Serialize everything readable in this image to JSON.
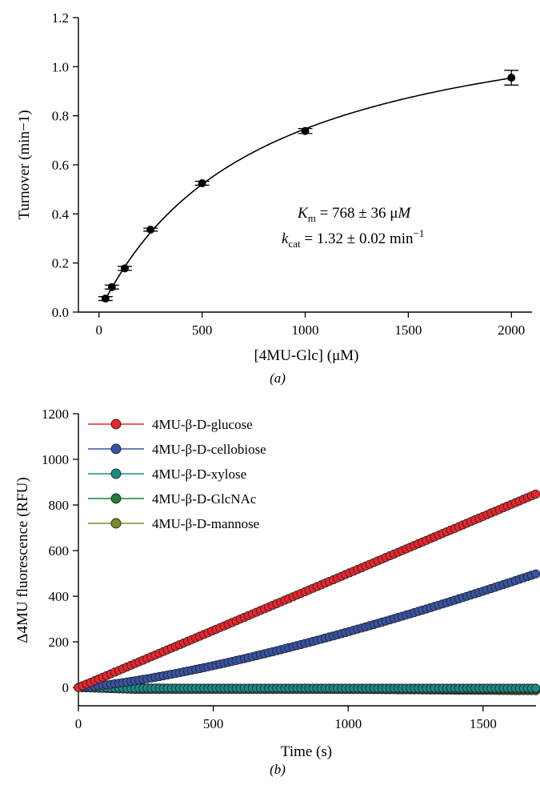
{
  "figure": {
    "panel_a_label": "(a)",
    "panel_b_label": "(b)"
  },
  "chart_data": [
    {
      "type": "scatter",
      "panel": "a",
      "xlabel": "[4MU-Glc] (μM)",
      "ylabel": "Turnover (min−1)",
      "xlim": [
        -100,
        2100
      ],
      "ylim": [
        0,
        1.2
      ],
      "xticks": [
        0,
        500,
        1000,
        1500,
        2000
      ],
      "yticks": [
        0.0,
        0.2,
        0.4,
        0.6,
        0.8,
        1.0,
        1.2
      ],
      "ytick_labels": [
        "0.0",
        "0.2",
        "0.4",
        "0.6",
        "0.8",
        "1.0",
        "1.2"
      ],
      "grid": false,
      "points": [
        {
          "x": 31.25,
          "y": 0.055,
          "err": 0.008
        },
        {
          "x": 62.5,
          "y": 0.102,
          "err": 0.008
        },
        {
          "x": 125,
          "y": 0.178,
          "err": 0.008
        },
        {
          "x": 250,
          "y": 0.336,
          "err": 0.006
        },
        {
          "x": 500,
          "y": 0.525,
          "err": 0.008
        },
        {
          "x": 1000,
          "y": 0.738,
          "err": 0.01
        },
        {
          "x": 2000,
          "y": 0.955,
          "err": 0.03
        }
      ],
      "fit": {
        "model": "Michaelis-Menten",
        "Vmax": 1.32,
        "Km": 768
      },
      "annotation": {
        "km_label": "K",
        "km_sub": "m",
        "km_value": " = 768 ± 36 μ",
        "km_unit": "M",
        "kcat_label": "k",
        "kcat_sub": "cat",
        "kcat_value": " = 1.32 ± 0.02 min",
        "kcat_sup": "−1"
      }
    },
    {
      "type": "scatter",
      "panel": "b",
      "xlabel": "Time (s)",
      "ylabel": "Δ4MU fluorescence (RFU)",
      "xlim": [
        0,
        1720
      ],
      "ylim": [
        -80,
        1200
      ],
      "xticks": [
        0,
        500,
        1000,
        1500
      ],
      "yticks": [
        0,
        200,
        400,
        600,
        800,
        1000,
        1200
      ],
      "grid": false,
      "legend_position": "top-left",
      "x_step": 15,
      "x_max": 1700,
      "series": [
        {
          "name": "4MU-β-D-glucose",
          "color": "#e8262b",
          "model": "linear",
          "end_value": 850
        },
        {
          "name": "4MU-β-D-cellobiose",
          "color": "#3753a4",
          "model": "lag",
          "end_value": 500
        },
        {
          "name": "4MU-β-D-xylose",
          "color": "#1a8a85",
          "model": "flat",
          "end_value": -3
        },
        {
          "name": "4MU-β-D-GlcNAc",
          "color": "#1e7f3c",
          "model": "flat",
          "end_value": -8
        },
        {
          "name": "4MU-β-D-mannose",
          "color": "#7d8a2c",
          "model": "decline",
          "end_value": -14
        }
      ]
    }
  ]
}
